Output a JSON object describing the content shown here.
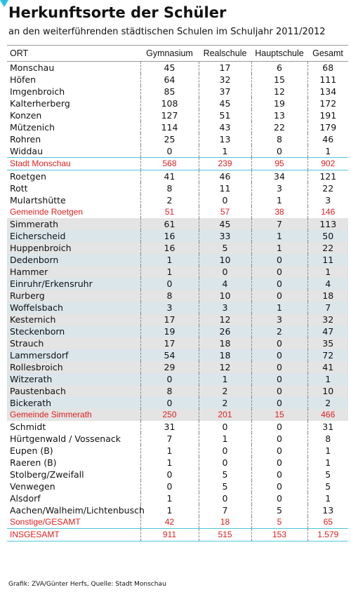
{
  "header": {
    "title": "Herkunftsorte der Schüler",
    "subtitle": "an den weiterführenden städtischen Schulen im Schuljahr 2011/2012"
  },
  "table": {
    "columns": [
      "ORT",
      "Gymnasium",
      "Realschule",
      "Hauptschule",
      "Gesamt"
    ],
    "rows": [
      [
        "Monschau",
        "45",
        "17",
        "6",
        "68"
      ],
      [
        "Höfen",
        "64",
        "32",
        "15",
        "111"
      ],
      [
        "Imgenbroich",
        "85",
        "37",
        "12",
        "134"
      ],
      [
        "Kalterherberg",
        "108",
        "45",
        "19",
        "172"
      ],
      [
        "Konzen",
        "127",
        "51",
        "13",
        "191"
      ],
      [
        "Mützenich",
        "114",
        "43",
        "22",
        "179"
      ],
      [
        "Rohren",
        "25",
        "13",
        "8",
        "46"
      ],
      [
        "Widdau",
        "0",
        "1",
        "0",
        "1"
      ],
      [
        "Stadt Monschau",
        "568",
        "239",
        "95",
        "902"
      ],
      [
        "Roetgen",
        "41",
        "46",
        "34",
        "121"
      ],
      [
        "Rott",
        "8",
        "11",
        "3",
        "22"
      ],
      [
        "Mulartshütte",
        "2",
        "0",
        "1",
        "3"
      ],
      [
        "Gemeinde Roetgen",
        "51",
        "57",
        "38",
        "146"
      ],
      [
        "Simmerath",
        "61",
        "45",
        "7",
        "113"
      ],
      [
        "Eicherscheid",
        "16",
        "33",
        "1",
        "50"
      ],
      [
        "Huppenbroich",
        "16",
        "5",
        "1",
        "22"
      ],
      [
        "Dedenborn",
        "1",
        "10",
        "0",
        "11"
      ],
      [
        "Hammer",
        "1",
        "0",
        "0",
        "1"
      ],
      [
        "Einruhr/Erkensruhr",
        "0",
        "4",
        "0",
        "4"
      ],
      [
        "Rurberg",
        "8",
        "10",
        "0",
        "18"
      ],
      [
        "Woffelsbach",
        "3",
        "3",
        "1",
        "7"
      ],
      [
        "Kesternich",
        "17",
        "12",
        "3",
        "32"
      ],
      [
        "Steckenborn",
        "19",
        "26",
        "2",
        "47"
      ],
      [
        "Strauch",
        "17",
        "18",
        "0",
        "35"
      ],
      [
        "Lammersdorf",
        "54",
        "18",
        "0",
        "72"
      ],
      [
        "Rollesbroich",
        "29",
        "12",
        "0",
        "41"
      ],
      [
        "Witzerath",
        "0",
        "1",
        "0",
        "1"
      ],
      [
        "Paustenbach",
        "8",
        "2",
        "0",
        "10"
      ],
      [
        "Bickerath",
        "0",
        "2",
        "0",
        "2"
      ],
      [
        "Gemeinde Simmerath",
        "250",
        "201",
        "15",
        "466"
      ],
      [
        "Schmidt",
        "31",
        "0",
        "0",
        "31"
      ],
      [
        "Hürtgenwald / Vossenack",
        "7",
        "1",
        "0",
        "8"
      ],
      [
        "Eupen (B)",
        "1",
        "0",
        "0",
        "1"
      ],
      [
        "Raeren (B)",
        "1",
        "0",
        "0",
        "1"
      ],
      [
        "Stolberg/Zweifall",
        "0",
        "5",
        "0",
        "5"
      ],
      [
        "Venwegen",
        "0",
        "5",
        "0",
        "5"
      ],
      [
        "Alsdorf",
        "1",
        "0",
        "0",
        "1"
      ],
      [
        "Aachen/Walheim/Lichtenbusch",
        "1",
        "7",
        "5",
        "13"
      ],
      [
        "Sonstige/GESAMT",
        "42",
        "18",
        "5",
        "65"
      ],
      [
        "INSGESAMT",
        "911",
        "515",
        "153",
        "1.579"
      ]
    ]
  },
  "footer": "Grafik: ZVA/Günter Herfs, Quelle: Stadt Monschau"
}
